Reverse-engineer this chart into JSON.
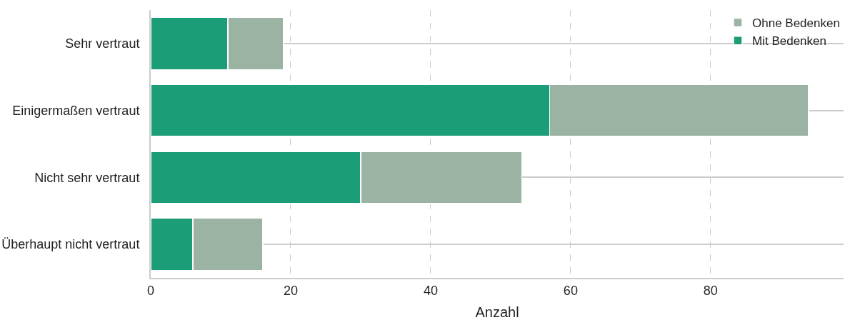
{
  "chart_data": {
    "type": "bar",
    "orientation": "horizontal",
    "stacked": true,
    "xlabel": "Anzahl",
    "categories": [
      "Sehr vertraut",
      "Einigermaßen vertraut",
      "Nicht sehr vertraut",
      "Überhaupt nicht vertraut"
    ],
    "series": [
      {
        "name": "Mit Bedenken",
        "color": "#1b9e77",
        "values": [
          11,
          57,
          30,
          6
        ]
      },
      {
        "name": "Ohne Bedenken",
        "color": "#9bb3a2",
        "values": [
          8,
          37,
          23,
          10
        ]
      }
    ],
    "xlim": [
      0,
      99
    ],
    "xticks": [
      0,
      20,
      40,
      60,
      80
    ],
    "grid": true,
    "legend": "top right"
  }
}
